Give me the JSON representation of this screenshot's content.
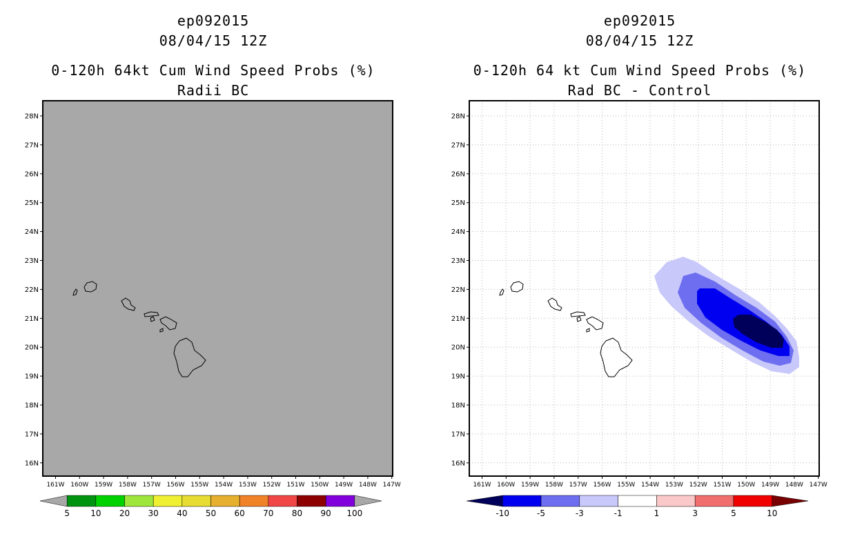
{
  "panels": [
    {
      "storm_id": "ep092015",
      "datetime": "08/04/15 12Z",
      "title": "0-120h 64kt Cum Wind Speed Probs (%)",
      "subtitle": "Radii BC",
      "lat_labels": [
        "28N",
        "27N",
        "26N",
        "25N",
        "24N",
        "23N",
        "22N",
        "21N",
        "20N",
        "19N",
        "18N",
        "17N",
        "16N"
      ],
      "lon_labels": [
        "161W",
        "160W",
        "159W",
        "158W",
        "157W",
        "156W",
        "155W",
        "154W",
        "153W",
        "152W",
        "151W",
        "150W",
        "149W",
        "148W",
        "147W"
      ],
      "colorbar": {
        "labels": [
          "5",
          "10",
          "20",
          "30",
          "40",
          "50",
          "60",
          "70",
          "80",
          "90",
          "100"
        ],
        "colors": [
          "#a8a8a8",
          "#00930f",
          "#00d200",
          "#9fe63c",
          "#f0f032",
          "#e6dc32",
          "#e6af2d",
          "#f08228",
          "#f04646",
          "#8c0000",
          "#8200dc",
          "#a8a8a8"
        ]
      },
      "background_color": "#a8a8a8"
    },
    {
      "storm_id": "ep092015",
      "datetime": "08/04/15 12Z",
      "title": "0-120h 64 kt Cum Wind Speed Probs (%)",
      "subtitle": "Rad BC - Control",
      "lat_labels": [
        "28N",
        "27N",
        "26N",
        "25N",
        "24N",
        "23N",
        "22N",
        "21N",
        "20N",
        "19N",
        "18N",
        "17N",
        "16N"
      ],
      "lon_labels": [
        "161W",
        "160W",
        "159W",
        "158W",
        "157W",
        "156W",
        "155W",
        "154W",
        "153W",
        "152W",
        "151W",
        "150W",
        "149W",
        "148W",
        "147W"
      ],
      "colorbar": {
        "labels": [
          "-10",
          "-5",
          "-3",
          "-1",
          "1",
          "3",
          "5",
          "10"
        ],
        "colors": [
          "#00005a",
          "#0000f0",
          "#6e6ef0",
          "#c8c8fa",
          "#ffffff",
          "#fac8c8",
          "#f06e6e",
          "#f00000",
          "#780000"
        ]
      },
      "background_color": "#ffffff"
    }
  ]
}
